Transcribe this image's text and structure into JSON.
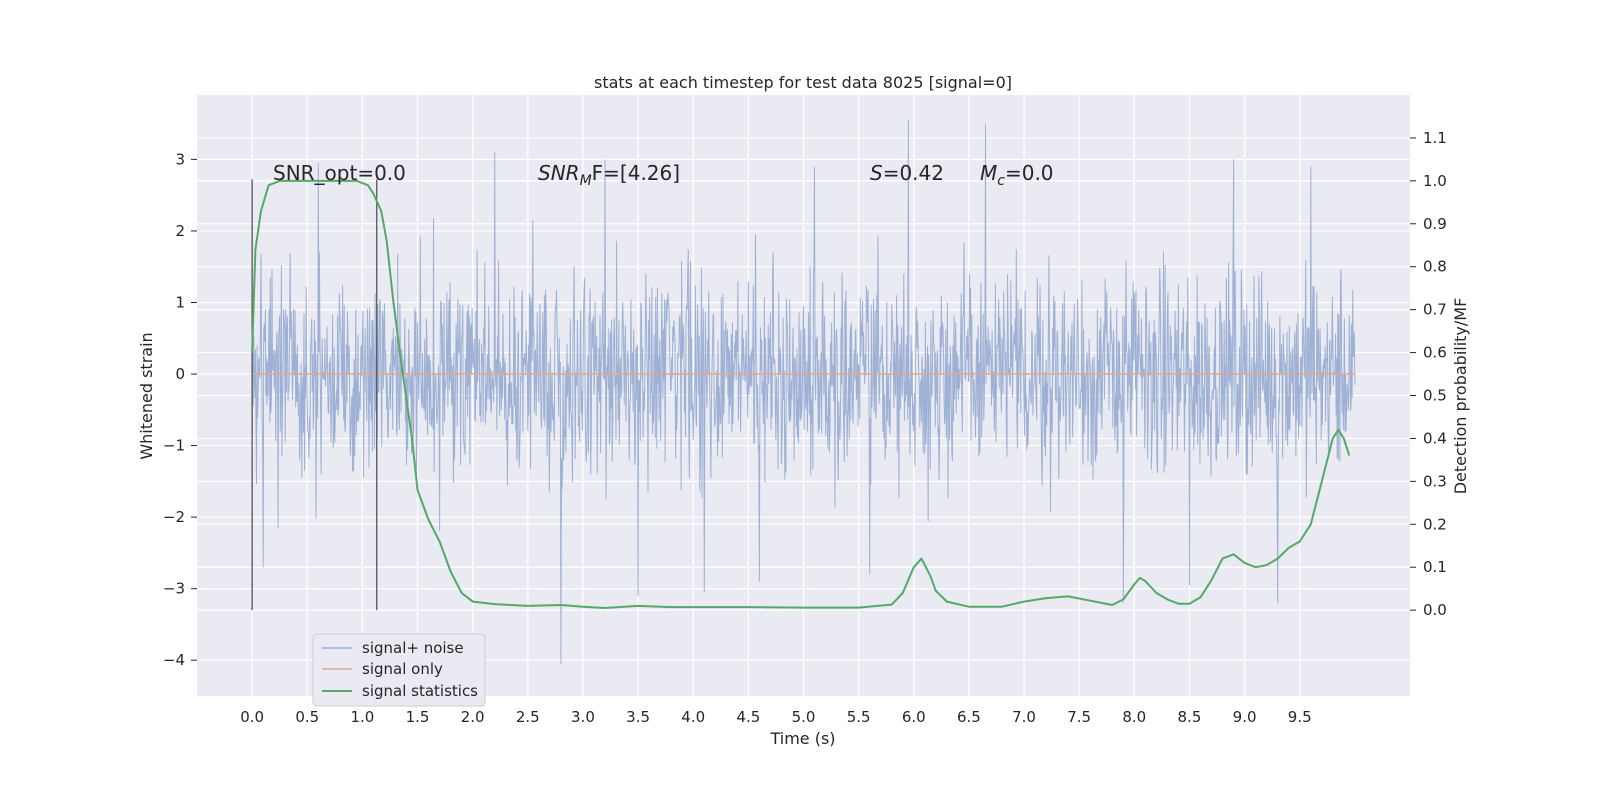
{
  "chart_data": {
    "type": "line",
    "title": "stats at each timestep for test data 8025 [signal=0]",
    "xlabel": "Time (s)",
    "ylabel": "Whitened strain",
    "y2label": "Detection probability/MF",
    "xlim": [
      -0.5,
      10.5
    ],
    "ylim": [
      -4.5,
      3.9
    ],
    "y2lim": [
      -0.2,
      1.2
    ],
    "x_ticks": [
      "0.0",
      "0.5",
      "1.0",
      "1.5",
      "2.0",
      "2.5",
      "3.0",
      "3.5",
      "4.0",
      "4.5",
      "5.0",
      "5.5",
      "6.0",
      "6.5",
      "7.0",
      "7.5",
      "8.0",
      "8.5",
      "9.0",
      "9.5"
    ],
    "y_ticks": [
      "−4",
      "−3",
      "−2",
      "−1",
      "0",
      "1",
      "2",
      "3"
    ],
    "y2_ticks": [
      "0.0",
      "0.1",
      "0.2",
      "0.3",
      "0.4",
      "0.5",
      "0.6",
      "0.7",
      "0.8",
      "0.9",
      "1.0",
      "1.1"
    ],
    "grid": true,
    "legend_position": "lower-left",
    "annotations": {
      "snr_opt": "SNR_opt=0.0",
      "snr_mf_base": "SNR",
      "snr_mf_sub": "M",
      "snr_mf_rest": "F=[4.26]",
      "s_italic": "S",
      "s_rest": "=0.42",
      "mc_base": "M",
      "mc_sub": "c",
      "mc_rest": "=0.0"
    },
    "vertical_markers": [
      0.0,
      1.13
    ],
    "series": [
      {
        "name": "signal+ noise",
        "color": "#9aaed3",
        "axis": "left",
        "x_range": [
          0.0,
          10.0
        ],
        "envelope_typical": [
          -1.6,
          1.6
        ],
        "peaks": [
          {
            "x": 0.1,
            "y": -2.7
          },
          {
            "x": 0.6,
            "y": 2.95
          },
          {
            "x": 1.7,
            "y": -2.2
          },
          {
            "x": 2.2,
            "y": 3.1
          },
          {
            "x": 2.8,
            "y": -4.05
          },
          {
            "x": 3.2,
            "y": 3.0
          },
          {
            "x": 3.5,
            "y": -3.1
          },
          {
            "x": 4.1,
            "y": -3.05
          },
          {
            "x": 4.6,
            "y": -2.9
          },
          {
            "x": 5.1,
            "y": 2.9
          },
          {
            "x": 5.6,
            "y": -2.8
          },
          {
            "x": 5.95,
            "y": 3.55
          },
          {
            "x": 6.65,
            "y": 3.5
          },
          {
            "x": 7.9,
            "y": -3.2
          },
          {
            "x": 8.5,
            "y": -2.95
          },
          {
            "x": 8.9,
            "y": 3.0
          },
          {
            "x": 9.3,
            "y": -3.2
          },
          {
            "x": 9.6,
            "y": 2.9
          }
        ]
      },
      {
        "name": "signal only",
        "color": "#e0a88a",
        "axis": "left",
        "x": [
          0.0,
          10.0
        ],
        "y": [
          0.0,
          0.0
        ]
      },
      {
        "name": "signal statistics",
        "color": "#55a868",
        "axis": "right",
        "x": [
          0.0,
          0.03,
          0.08,
          0.15,
          0.25,
          0.5,
          0.75,
          0.95,
          1.05,
          1.1,
          1.17,
          1.22,
          1.28,
          1.35,
          1.45,
          1.5,
          1.6,
          1.7,
          1.8,
          1.9,
          2.0,
          2.2,
          2.5,
          2.8,
          3.0,
          3.2,
          3.5,
          3.8,
          4.0,
          4.5,
          5.0,
          5.5,
          5.8,
          5.9,
          6.0,
          6.07,
          6.15,
          6.2,
          6.3,
          6.5,
          6.8,
          7.0,
          7.2,
          7.4,
          7.6,
          7.8,
          7.9,
          8.0,
          8.05,
          8.1,
          8.2,
          8.3,
          8.4,
          8.5,
          8.6,
          8.7,
          8.8,
          8.9,
          9.0,
          9.1,
          9.2,
          9.3,
          9.4,
          9.5,
          9.6,
          9.7,
          9.8,
          9.85,
          9.9,
          9.95
        ],
        "y": [
          0.6,
          0.84,
          0.93,
          0.99,
          1.0,
          1.0,
          1.0,
          1.0,
          0.99,
          0.97,
          0.93,
          0.86,
          0.72,
          0.58,
          0.4,
          0.28,
          0.21,
          0.16,
          0.09,
          0.04,
          0.02,
          0.014,
          0.01,
          0.012,
          0.008,
          0.005,
          0.01,
          0.007,
          0.007,
          0.007,
          0.006,
          0.006,
          0.013,
          0.04,
          0.1,
          0.12,
          0.08,
          0.045,
          0.02,
          0.008,
          0.008,
          0.02,
          0.028,
          0.032,
          0.022,
          0.012,
          0.025,
          0.06,
          0.075,
          0.068,
          0.04,
          0.025,
          0.015,
          0.015,
          0.03,
          0.07,
          0.12,
          0.13,
          0.11,
          0.1,
          0.105,
          0.12,
          0.145,
          0.16,
          0.2,
          0.3,
          0.4,
          0.42,
          0.4,
          0.36
        ]
      }
    ]
  }
}
